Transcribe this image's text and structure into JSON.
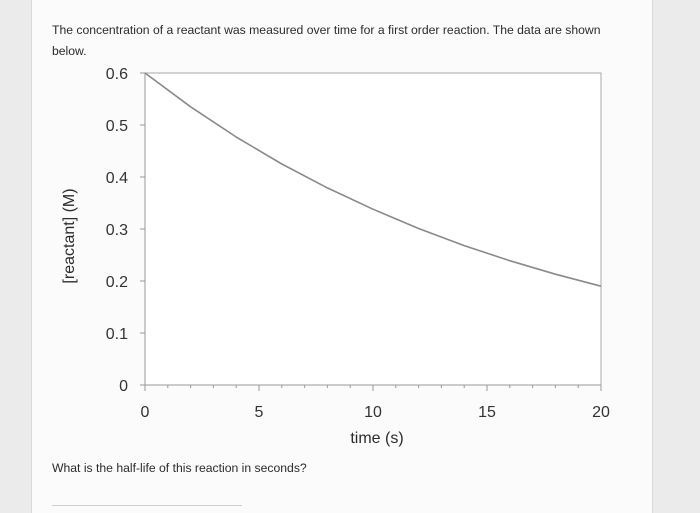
{
  "question": {
    "intro": "The concentration of a reactant was measured over time for a first order reaction. The data are shown below.",
    "prompt": "What is the half-life of this reaction in seconds?"
  },
  "chart_data": {
    "type": "line",
    "xlabel": "time (s)",
    "ylabel": "[reactant] (M)",
    "xlim": [
      0,
      20
    ],
    "ylim": [
      0,
      0.6
    ],
    "x_ticks": [
      0,
      5,
      10,
      15,
      20
    ],
    "x_tick_labels": [
      "0",
      "5",
      "10",
      "15",
      "20"
    ],
    "y_ticks": [
      0,
      0.1,
      0.2,
      0.3,
      0.4,
      0.5,
      0.6
    ],
    "y_tick_labels": [
      "0",
      "0.1",
      "0.2",
      "0.3",
      "0.4",
      "0.5",
      "0.6"
    ],
    "grid": false,
    "series": [
      {
        "x": [
          0,
          2,
          4,
          6,
          8,
          10,
          12,
          14,
          16,
          18,
          20
        ],
        "y": [
          0.6,
          0.535,
          0.477,
          0.425,
          0.379,
          0.338,
          0.301,
          0.268,
          0.239,
          0.213,
          0.19
        ],
        "color": "#8a8a8a"
      }
    ]
  },
  "colors": {
    "curve": "#8a8a8a",
    "axis": "#9a9a9a",
    "plot_border": "#a8a8a8",
    "plot_background": "#ffffff"
  }
}
